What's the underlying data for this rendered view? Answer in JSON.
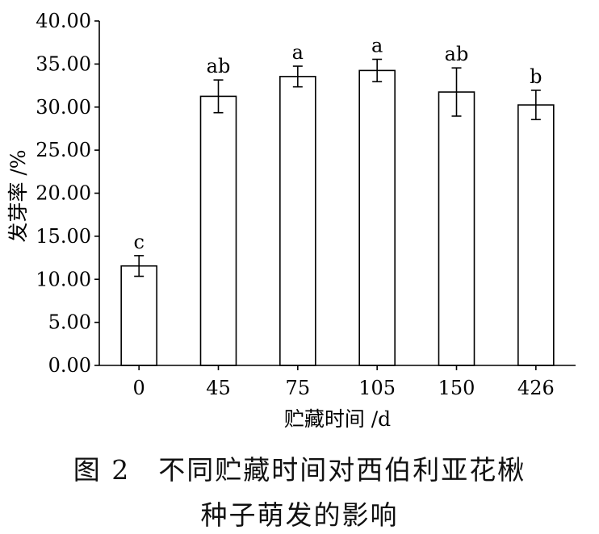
{
  "chart_data": {
    "type": "bar",
    "categories": [
      "0",
      "45",
      "75",
      "105",
      "150",
      "426"
    ],
    "values": [
      11.55,
      31.25,
      33.55,
      34.25,
      31.75,
      30.25
    ],
    "errors": [
      1.2,
      1.9,
      1.2,
      1.3,
      2.8,
      1.7
    ],
    "significance_letters": [
      "c",
      "ab",
      "a",
      "a",
      "ab",
      "b"
    ],
    "xlabel": "贮藏时间 /d",
    "ylabel": "发芽率 /%",
    "ylim": [
      0,
      40
    ],
    "yticks": [
      "0.00",
      "5.00",
      "10.00",
      "15.00",
      "20.00",
      "25.00",
      "30.00",
      "35.00",
      "40.00"
    ],
    "grid": false,
    "bar_fill": "#ffffff",
    "bar_stroke": "#000000"
  },
  "caption": {
    "line1": "图 2　不同贮藏时间对西伯利亚花楸",
    "line2": "种子萌发的影响"
  }
}
